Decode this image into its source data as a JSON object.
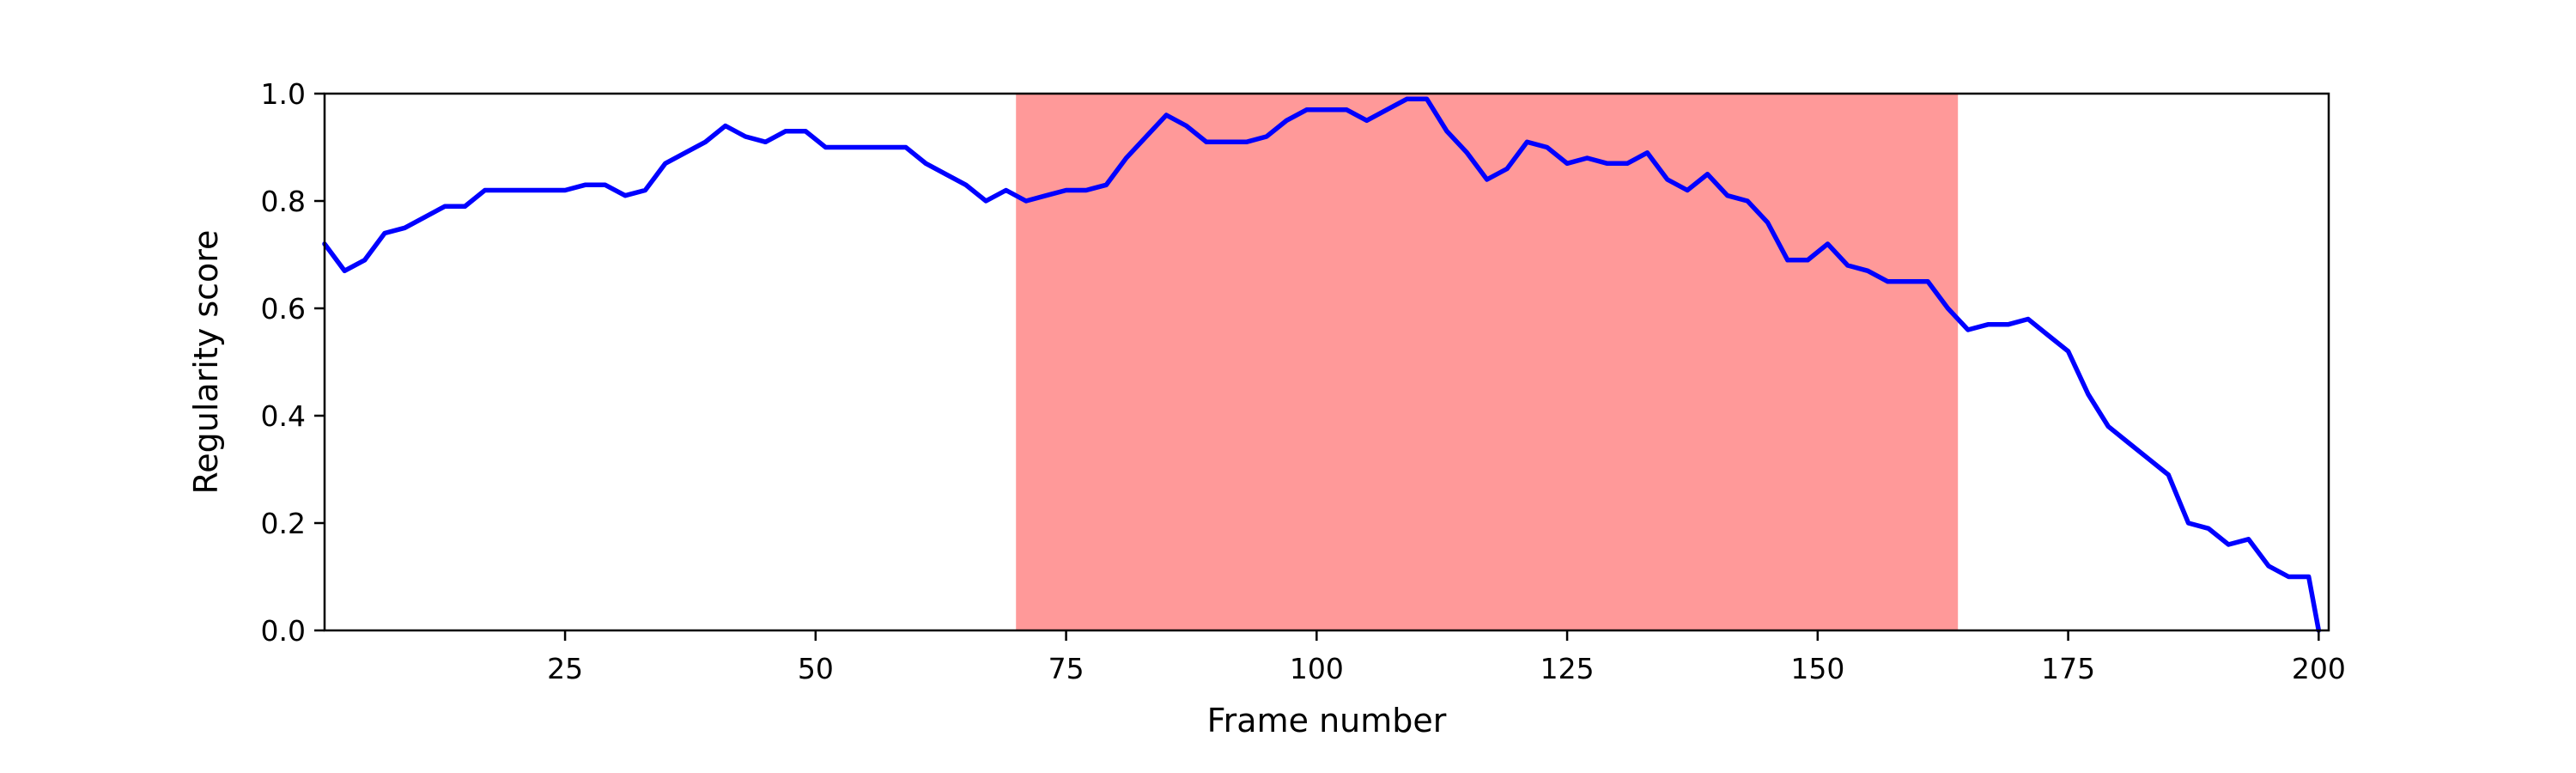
{
  "chart_data": {
    "type": "line",
    "title": "",
    "xlabel": "Frame number",
    "ylabel": "Regularity score",
    "xlim": [
      1,
      201
    ],
    "ylim": [
      0,
      1.0
    ],
    "x_ticks": [
      25,
      50,
      75,
      100,
      125,
      150,
      175,
      200
    ],
    "y_ticks": [
      "0.0",
      "0.2",
      "0.4",
      "0.6",
      "0.8",
      "1.0"
    ],
    "grid": false,
    "highlight_region": {
      "x_start": 70,
      "x_end": 164,
      "color": "#ff9999"
    },
    "series": [
      {
        "color": "#0000ff",
        "x": [
          1,
          3,
          5,
          7,
          9,
          11,
          13,
          15,
          17,
          19,
          21,
          23,
          25,
          27,
          29,
          31,
          33,
          35,
          37,
          39,
          41,
          43,
          45,
          47,
          49,
          51,
          53,
          55,
          57,
          59,
          61,
          63,
          65,
          67,
          69,
          71,
          73,
          75,
          77,
          79,
          81,
          83,
          85,
          87,
          89,
          91,
          93,
          95,
          97,
          99,
          101,
          103,
          105,
          107,
          109,
          111,
          113,
          115,
          117,
          119,
          121,
          123,
          125,
          127,
          129,
          131,
          133,
          135,
          137,
          139,
          141,
          143,
          145,
          147,
          149,
          151,
          153,
          155,
          157,
          159,
          161,
          163,
          165,
          167,
          169,
          171,
          173,
          175,
          177,
          179,
          181,
          183,
          185,
          187,
          189,
          191,
          193,
          195,
          197,
          199,
          200
        ],
        "values": [
          0.72,
          0.67,
          0.69,
          0.74,
          0.75,
          0.77,
          0.79,
          0.79,
          0.82,
          0.82,
          0.82,
          0.82,
          0.82,
          0.83,
          0.83,
          0.81,
          0.82,
          0.87,
          0.89,
          0.91,
          0.94,
          0.92,
          0.91,
          0.93,
          0.93,
          0.9,
          0.9,
          0.9,
          0.9,
          0.9,
          0.87,
          0.85,
          0.83,
          0.8,
          0.82,
          0.8,
          0.81,
          0.82,
          0.82,
          0.83,
          0.88,
          0.92,
          0.96,
          0.94,
          0.91,
          0.91,
          0.91,
          0.92,
          0.95,
          0.97,
          0.97,
          0.97,
          0.95,
          0.97,
          0.99,
          0.99,
          0.93,
          0.89,
          0.84,
          0.86,
          0.91,
          0.9,
          0.87,
          0.88,
          0.87,
          0.87,
          0.89,
          0.84,
          0.82,
          0.85,
          0.81,
          0.8,
          0.76,
          0.69,
          0.69,
          0.72,
          0.68,
          0.67,
          0.65,
          0.65,
          0.65,
          0.6,
          0.56,
          0.57,
          0.57,
          0.58,
          0.55,
          0.52,
          0.44,
          0.38,
          0.35,
          0.32,
          0.29,
          0.2,
          0.19,
          0.16,
          0.17,
          0.12,
          0.1,
          0.1,
          0.0
        ]
      }
    ]
  }
}
